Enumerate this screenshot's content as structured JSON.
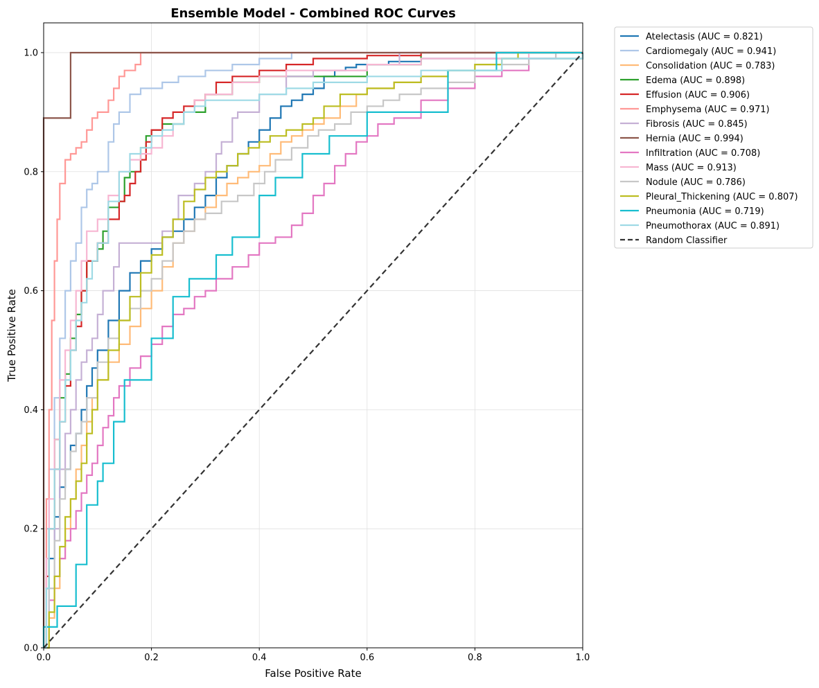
{
  "chart_data": {
    "type": "line",
    "title": "Ensemble Model - Combined ROC Curves",
    "xlabel": "False Positive Rate",
    "ylabel": "True Positive Rate",
    "xlim": [
      0.0,
      1.0
    ],
    "ylim": [
      0.0,
      1.05
    ],
    "xticks": [
      "0.0",
      "0.2",
      "0.4",
      "0.6",
      "0.8",
      "1.0"
    ],
    "yticks": [
      "0.0",
      "0.2",
      "0.4",
      "0.6",
      "0.8",
      "1.0"
    ],
    "grid": true,
    "legend_position": "outside-top-right",
    "series": [
      {
        "name": "Atelectasis",
        "label": "Atelectasis (AUC = 0.821)",
        "auc": 0.821,
        "color": "#1f77b4",
        "fpr": [
          0,
          0.005,
          0.01,
          0.02,
          0.03,
          0.04,
          0.05,
          0.06,
          0.07,
          0.08,
          0.09,
          0.1,
          0.12,
          0.14,
          0.16,
          0.18,
          0.2,
          0.22,
          0.24,
          0.26,
          0.28,
          0.3,
          0.32,
          0.34,
          0.36,
          0.38,
          0.4,
          0.42,
          0.44,
          0.46,
          0.48,
          0.5,
          0.52,
          0.54,
          0.56,
          0.58,
          0.6,
          0.62,
          0.64,
          0.66,
          0.7,
          1.0
        ],
        "tpr": [
          0,
          0.1,
          0.15,
          0.22,
          0.27,
          0.3,
          0.34,
          0.36,
          0.4,
          0.44,
          0.47,
          0.5,
          0.55,
          0.6,
          0.63,
          0.65,
          0.67,
          0.69,
          0.7,
          0.72,
          0.74,
          0.76,
          0.79,
          0.81,
          0.83,
          0.85,
          0.87,
          0.89,
          0.91,
          0.92,
          0.93,
          0.94,
          0.96,
          0.97,
          0.975,
          0.98,
          0.98,
          0.98,
          0.985,
          0.985,
          0.99,
          1.0
        ]
      },
      {
        "name": "Cardiomegaly",
        "label": "Cardiomegaly (AUC = 0.941)",
        "auc": 0.941,
        "color": "#aec7e8",
        "fpr": [
          0,
          0.005,
          0.01,
          0.02,
          0.03,
          0.04,
          0.05,
          0.06,
          0.07,
          0.08,
          0.09,
          0.1,
          0.12,
          0.13,
          0.14,
          0.16,
          0.18,
          0.2,
          0.22,
          0.25,
          0.3,
          0.35,
          0.4,
          0.46,
          0.5,
          1.0
        ],
        "tpr": [
          0,
          0.2,
          0.3,
          0.42,
          0.52,
          0.6,
          0.65,
          0.68,
          0.74,
          0.77,
          0.78,
          0.8,
          0.85,
          0.88,
          0.9,
          0.93,
          0.94,
          0.94,
          0.95,
          0.96,
          0.97,
          0.98,
          0.99,
          1.0,
          1.0,
          1.0
        ]
      },
      {
        "name": "Consolidation",
        "label": "Consolidation (AUC = 0.783)",
        "auc": 0.783,
        "color": "#ffbb78",
        "fpr": [
          0,
          0.01,
          0.02,
          0.03,
          0.04,
          0.05,
          0.06,
          0.07,
          0.08,
          0.09,
          0.1,
          0.12,
          0.14,
          0.16,
          0.18,
          0.2,
          0.22,
          0.24,
          0.26,
          0.28,
          0.3,
          0.32,
          0.34,
          0.36,
          0.38,
          0.4,
          0.42,
          0.44,
          0.46,
          0.48,
          0.5,
          0.52,
          0.55,
          0.58,
          0.6,
          0.65,
          0.7,
          0.75,
          0.8,
          0.85,
          0.88,
          1.0
        ],
        "tpr": [
          0,
          0.05,
          0.1,
          0.15,
          0.2,
          0.25,
          0.3,
          0.34,
          0.38,
          0.42,
          0.45,
          0.48,
          0.51,
          0.54,
          0.57,
          0.6,
          0.64,
          0.68,
          0.7,
          0.72,
          0.74,
          0.76,
          0.78,
          0.79,
          0.8,
          0.81,
          0.83,
          0.85,
          0.86,
          0.87,
          0.88,
          0.89,
          0.91,
          0.93,
          0.94,
          0.95,
          0.96,
          0.97,
          0.98,
          0.99,
          0.99,
          1.0
        ]
      },
      {
        "name": "Edema",
        "label": "Edema (AUC = 0.898)",
        "auc": 0.898,
        "color": "#2ca02c",
        "fpr": [
          0,
          0.005,
          0.01,
          0.02,
          0.03,
          0.04,
          0.05,
          0.06,
          0.07,
          0.08,
          0.1,
          0.11,
          0.12,
          0.14,
          0.15,
          0.16,
          0.18,
          0.19,
          0.2,
          0.22,
          0.24,
          0.26,
          0.3,
          0.35,
          0.4,
          0.5,
          0.6,
          0.7,
          1.0
        ],
        "tpr": [
          0,
          0.1,
          0.2,
          0.35,
          0.42,
          0.46,
          0.52,
          0.56,
          0.6,
          0.65,
          0.67,
          0.7,
          0.74,
          0.75,
          0.79,
          0.8,
          0.84,
          0.86,
          0.87,
          0.88,
          0.88,
          0.9,
          0.93,
          0.95,
          0.96,
          0.96,
          0.98,
          1.0,
          1.0
        ]
      },
      {
        "name": "Effusion",
        "label": "Effusion (AUC = 0.906)",
        "auc": 0.906,
        "color": "#d62728",
        "fpr": [
          0,
          0.005,
          0.01,
          0.02,
          0.03,
          0.04,
          0.05,
          0.06,
          0.07,
          0.08,
          0.1,
          0.12,
          0.14,
          0.15,
          0.16,
          0.17,
          0.18,
          0.19,
          0.2,
          0.22,
          0.24,
          0.26,
          0.28,
          0.3,
          0.32,
          0.35,
          0.4,
          0.45,
          0.5,
          0.6,
          0.7,
          0.8,
          0.9,
          0.94,
          1.0
        ],
        "tpr": [
          0,
          0.12,
          0.2,
          0.3,
          0.38,
          0.44,
          0.5,
          0.54,
          0.6,
          0.65,
          0.68,
          0.72,
          0.75,
          0.76,
          0.78,
          0.8,
          0.82,
          0.85,
          0.87,
          0.89,
          0.9,
          0.91,
          0.92,
          0.93,
          0.95,
          0.96,
          0.97,
          0.98,
          0.99,
          0.995,
          1.0,
          1.0,
          1.0,
          1.0,
          1.0
        ]
      },
      {
        "name": "Emphysema",
        "label": "Emphysema (AUC = 0.971)",
        "auc": 0.971,
        "color": "#ff9896",
        "fpr": [
          0,
          0.005,
          0.01,
          0.015,
          0.02,
          0.025,
          0.03,
          0.04,
          0.05,
          0.06,
          0.07,
          0.08,
          0.09,
          0.1,
          0.12,
          0.13,
          0.14,
          0.15,
          0.17,
          0.18,
          0.2,
          1.0
        ],
        "tpr": [
          0,
          0.25,
          0.4,
          0.55,
          0.65,
          0.72,
          0.78,
          0.82,
          0.83,
          0.84,
          0.85,
          0.87,
          0.89,
          0.9,
          0.92,
          0.94,
          0.96,
          0.97,
          0.98,
          1.0,
          1.0,
          1.0
        ]
      },
      {
        "name": "Fibrosis",
        "label": "Fibrosis (AUC = 0.845)",
        "auc": 0.845,
        "color": "#c5b0d5",
        "fpr": [
          0,
          0.01,
          0.02,
          0.03,
          0.04,
          0.05,
          0.06,
          0.07,
          0.08,
          0.09,
          0.1,
          0.11,
          0.12,
          0.13,
          0.14,
          0.16,
          0.2,
          0.22,
          0.24,
          0.25,
          0.28,
          0.3,
          0.32,
          0.33,
          0.35,
          0.36,
          0.4,
          0.45,
          0.5,
          0.6,
          0.66,
          0.7,
          1.0
        ],
        "tpr": [
          0,
          0.1,
          0.2,
          0.3,
          0.36,
          0.4,
          0.45,
          0.48,
          0.5,
          0.52,
          0.56,
          0.6,
          0.6,
          0.64,
          0.68,
          0.68,
          0.68,
          0.7,
          0.72,
          0.76,
          0.78,
          0.8,
          0.83,
          0.85,
          0.89,
          0.9,
          0.93,
          0.96,
          0.97,
          0.98,
          1.0,
          1.0,
          1.0
        ]
      },
      {
        "name": "Hernia",
        "label": "Hernia (AUC = 0.994)",
        "auc": 0.994,
        "color": "#8c564b",
        "fpr": [
          0,
          0.0,
          0.0,
          0.005,
          0.05,
          0.05,
          1.0
        ],
        "tpr": [
          0,
          0.78,
          0.89,
          0.89,
          0.89,
          1.0,
          1.0
        ]
      },
      {
        "name": "Infiltration",
        "label": "Infiltration (AUC = 0.708)",
        "auc": 0.708,
        "color": "#e377c2",
        "fpr": [
          0,
          0.01,
          0.02,
          0.03,
          0.04,
          0.05,
          0.06,
          0.07,
          0.08,
          0.09,
          0.1,
          0.11,
          0.12,
          0.13,
          0.14,
          0.16,
          0.18,
          0.2,
          0.22,
          0.24,
          0.26,
          0.28,
          0.3,
          0.32,
          0.35,
          0.38,
          0.4,
          0.43,
          0.46,
          0.48,
          0.5,
          0.52,
          0.54,
          0.56,
          0.58,
          0.6,
          0.62,
          0.65,
          0.7,
          0.75,
          0.8,
          0.85,
          0.9,
          0.95,
          1.0
        ],
        "tpr": [
          0,
          0.08,
          0.12,
          0.15,
          0.18,
          0.2,
          0.23,
          0.26,
          0.29,
          0.31,
          0.34,
          0.37,
          0.39,
          0.42,
          0.44,
          0.47,
          0.49,
          0.51,
          0.54,
          0.56,
          0.57,
          0.59,
          0.6,
          0.62,
          0.64,
          0.66,
          0.68,
          0.69,
          0.71,
          0.73,
          0.76,
          0.78,
          0.81,
          0.83,
          0.85,
          0.86,
          0.88,
          0.89,
          0.92,
          0.94,
          0.96,
          0.97,
          0.99,
          1.0,
          1.0
        ]
      },
      {
        "name": "Mass",
        "label": "Mass (AUC = 0.913)",
        "auc": 0.913,
        "color": "#f7b6d2",
        "fpr": [
          0,
          0.005,
          0.01,
          0.02,
          0.03,
          0.04,
          0.05,
          0.06,
          0.07,
          0.08,
          0.1,
          0.12,
          0.14,
          0.16,
          0.18,
          0.2,
          0.22,
          0.24,
          0.26,
          0.28,
          0.3,
          0.35,
          0.4,
          0.45,
          0.5,
          0.6,
          0.7,
          0.8,
          0.9,
          1.0
        ],
        "tpr": [
          0,
          0.15,
          0.25,
          0.35,
          0.45,
          0.5,
          0.55,
          0.6,
          0.65,
          0.7,
          0.72,
          0.76,
          0.8,
          0.82,
          0.83,
          0.84,
          0.86,
          0.88,
          0.9,
          0.92,
          0.93,
          0.95,
          0.96,
          0.97,
          0.97,
          0.98,
          0.99,
          0.99,
          1.0,
          1.0
        ]
      },
      {
        "name": "Nodule",
        "label": "Nodule (AUC = 0.786)",
        "auc": 0.786,
        "color": "#c7c7c7",
        "fpr": [
          0,
          0.01,
          0.02,
          0.03,
          0.04,
          0.05,
          0.06,
          0.07,
          0.08,
          0.1,
          0.12,
          0.14,
          0.16,
          0.18,
          0.2,
          0.22,
          0.24,
          0.26,
          0.28,
          0.3,
          0.33,
          0.36,
          0.39,
          0.41,
          0.43,
          0.46,
          0.49,
          0.51,
          0.54,
          0.57,
          0.6,
          0.63,
          0.66,
          0.7,
          0.75,
          0.8,
          0.85,
          0.9,
          0.95,
          1.0
        ],
        "tpr": [
          0,
          0.1,
          0.18,
          0.25,
          0.3,
          0.33,
          0.36,
          0.38,
          0.42,
          0.48,
          0.52,
          0.55,
          0.57,
          0.6,
          0.62,
          0.65,
          0.68,
          0.7,
          0.72,
          0.73,
          0.75,
          0.76,
          0.78,
          0.8,
          0.82,
          0.84,
          0.86,
          0.87,
          0.88,
          0.9,
          0.91,
          0.92,
          0.93,
          0.94,
          0.95,
          0.97,
          0.98,
          0.99,
          1.0,
          1.0
        ]
      },
      {
        "name": "Pleural_Thickening",
        "label": "Pleural_Thickening (AUC = 0.807)",
        "auc": 0.807,
        "color": "#bcbd22",
        "fpr": [
          0,
          0.01,
          0.02,
          0.03,
          0.04,
          0.05,
          0.06,
          0.07,
          0.08,
          0.09,
          0.1,
          0.12,
          0.14,
          0.16,
          0.18,
          0.2,
          0.22,
          0.24,
          0.26,
          0.28,
          0.3,
          0.32,
          0.34,
          0.36,
          0.38,
          0.4,
          0.42,
          0.45,
          0.48,
          0.5,
          0.52,
          0.55,
          0.6,
          0.65,
          0.7,
          0.75,
          0.8,
          0.85,
          0.88,
          1.0
        ],
        "tpr": [
          0,
          0.06,
          0.12,
          0.17,
          0.22,
          0.25,
          0.28,
          0.31,
          0.36,
          0.4,
          0.45,
          0.5,
          0.55,
          0.59,
          0.63,
          0.66,
          0.69,
          0.72,
          0.75,
          0.77,
          0.79,
          0.8,
          0.81,
          0.83,
          0.84,
          0.85,
          0.86,
          0.87,
          0.88,
          0.89,
          0.91,
          0.93,
          0.94,
          0.95,
          0.96,
          0.97,
          0.98,
          0.99,
          1.0,
          1.0
        ]
      },
      {
        "name": "Pneumonia",
        "label": "Pneumonia (AUC = 0.719)",
        "auc": 0.719,
        "color": "#17becf",
        "fpr": [
          0,
          0.0,
          0.025,
          0.025,
          0.06,
          0.06,
          0.08,
          0.08,
          0.1,
          0.1,
          0.11,
          0.11,
          0.13,
          0.13,
          0.15,
          0.15,
          0.2,
          0.2,
          0.24,
          0.24,
          0.27,
          0.27,
          0.32,
          0.32,
          0.35,
          0.35,
          0.4,
          0.4,
          0.43,
          0.43,
          0.48,
          0.48,
          0.53,
          0.53,
          0.6,
          0.6,
          0.75,
          0.75,
          0.84,
          0.84,
          1.0
        ],
        "tpr": [
          0,
          0.035,
          0.035,
          0.07,
          0.07,
          0.14,
          0.14,
          0.24,
          0.24,
          0.28,
          0.28,
          0.31,
          0.31,
          0.38,
          0.38,
          0.45,
          0.45,
          0.52,
          0.52,
          0.59,
          0.59,
          0.62,
          0.62,
          0.66,
          0.66,
          0.69,
          0.69,
          0.76,
          0.76,
          0.79,
          0.79,
          0.83,
          0.83,
          0.86,
          0.86,
          0.9,
          0.9,
          0.97,
          0.97,
          1.0,
          1.0
        ]
      },
      {
        "name": "Pneumothorax",
        "label": "Pneumothorax (AUC = 0.891)",
        "auc": 0.891,
        "color": "#9edae5",
        "fpr": [
          0,
          0.005,
          0.01,
          0.02,
          0.03,
          0.04,
          0.05,
          0.06,
          0.07,
          0.08,
          0.09,
          0.1,
          0.12,
          0.14,
          0.16,
          0.18,
          0.2,
          0.22,
          0.24,
          0.26,
          0.28,
          0.3,
          0.35,
          0.4,
          0.45,
          0.5,
          0.6,
          0.7,
          0.85,
          1.0
        ],
        "tpr": [
          0,
          0.1,
          0.2,
          0.3,
          0.38,
          0.45,
          0.5,
          0.55,
          0.58,
          0.62,
          0.65,
          0.68,
          0.75,
          0.8,
          0.83,
          0.84,
          0.86,
          0.87,
          0.88,
          0.9,
          0.91,
          0.92,
          0.92,
          0.93,
          0.94,
          0.95,
          0.96,
          0.97,
          0.99,
          1.0
        ]
      }
    ],
    "baseline": {
      "label": "Random Classifier",
      "color": "#333333",
      "fpr": [
        0,
        1
      ],
      "tpr": [
        0,
        1
      ]
    }
  }
}
